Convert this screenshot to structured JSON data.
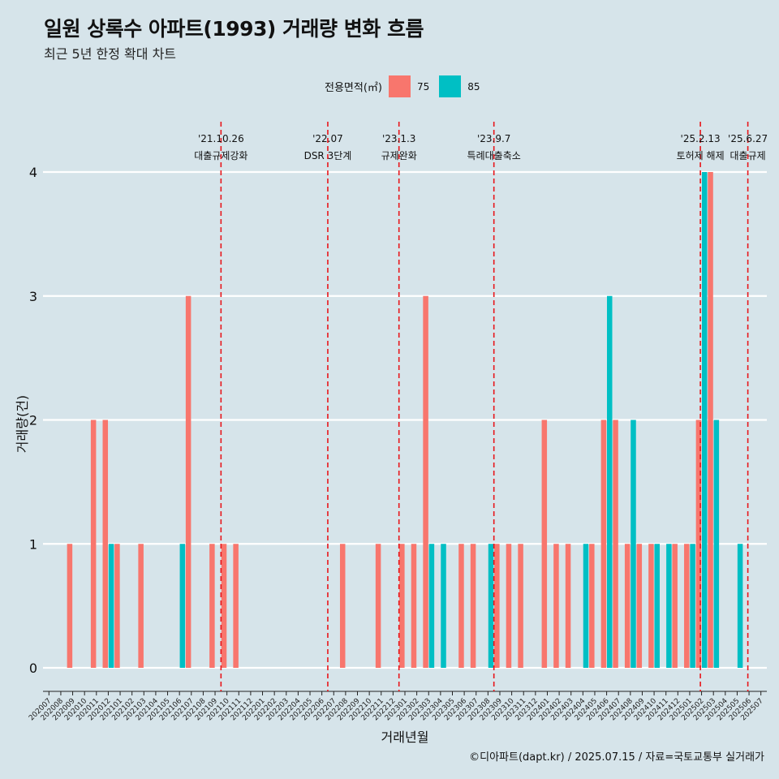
{
  "title": "일원 상록수 아파트(1993) 거래량 변화 흐름",
  "subtitle": "최근 5년 한정 확대 차트",
  "caption": "©디아파트(dapt.kr) / 2025.07.15 / 자료=국토교통부 실거래가",
  "colors": {
    "s75": "#F8766D",
    "s85": "#00BFC4",
    "background": "#d6e4ea",
    "event_line": "#e8161b"
  },
  "chart_data": {
    "type": "bar",
    "xlabel": "거래년월",
    "ylabel": "거래량(건)",
    "ylim": [
      0,
      4
    ],
    "yticks": [
      0,
      1,
      2,
      3,
      4
    ],
    "grid": "horizontal",
    "legend": {
      "title": "전용면적(㎡)",
      "placement": "top"
    },
    "categories": [
      "202007",
      "202008",
      "202009",
      "202010",
      "202011",
      "202012",
      "202101",
      "202102",
      "202103",
      "202104",
      "202105",
      "202106",
      "202107",
      "202108",
      "202109",
      "202110",
      "202111",
      "202112",
      "202201",
      "202202",
      "202203",
      "202204",
      "202205",
      "202206",
      "202207",
      "202208",
      "202209",
      "202210",
      "202211",
      "202212",
      "202301",
      "202302",
      "202303",
      "202304",
      "202305",
      "202306",
      "202307",
      "202308",
      "202309",
      "202310",
      "202311",
      "202312",
      "202401",
      "202402",
      "202403",
      "202404",
      "202405",
      "202406",
      "202407",
      "202408",
      "202409",
      "202410",
      "202411",
      "202412",
      "202501",
      "202502",
      "202503",
      "202504",
      "202505",
      "202506",
      "202507"
    ],
    "series": [
      {
        "name": "75",
        "color": "#F8766D",
        "values": [
          0,
          0,
          1,
          0,
          2,
          2,
          1,
          0,
          1,
          0,
          0,
          0,
          3,
          0,
          1,
          1,
          1,
          0,
          0,
          0,
          0,
          0,
          0,
          0,
          0,
          1,
          0,
          0,
          1,
          0,
          1,
          1,
          3,
          0,
          0,
          1,
          1,
          0,
          1,
          1,
          1,
          0,
          2,
          1,
          1,
          0,
          1,
          2,
          2,
          1,
          1,
          1,
          0,
          1,
          1,
          2,
          4,
          0,
          0,
          0,
          0
        ]
      },
      {
        "name": "85",
        "color": "#00BFC4",
        "values": [
          0,
          0,
          0,
          0,
          0,
          1,
          0,
          0,
          0,
          0,
          0,
          1,
          0,
          0,
          0,
          0,
          0,
          0,
          0,
          0,
          0,
          0,
          0,
          0,
          0,
          0,
          0,
          0,
          0,
          0,
          0,
          0,
          1,
          1,
          0,
          0,
          0,
          1,
          0,
          0,
          0,
          0,
          0,
          0,
          0,
          1,
          0,
          3,
          0,
          2,
          0,
          1,
          1,
          0,
          1,
          4,
          2,
          0,
          1,
          0,
          0
        ]
      }
    ],
    "annotations": [
      {
        "x": 15.0,
        "date": "'21.10.26",
        "label": "대출규제강화"
      },
      {
        "x": 24.0,
        "date": "'22.07",
        "label": "DSR 3단계"
      },
      {
        "x": 30.0,
        "date": "'23.1.3",
        "label": "규제완화"
      },
      {
        "x": 38.0,
        "date": "'23.9.7",
        "label": "특례대출축소"
      },
      {
        "x": 55.4,
        "date": "'25.2.13",
        "label": "토허제 해제"
      },
      {
        "x": 59.4,
        "date": "'25.6.27",
        "label": "대출규제"
      }
    ]
  }
}
